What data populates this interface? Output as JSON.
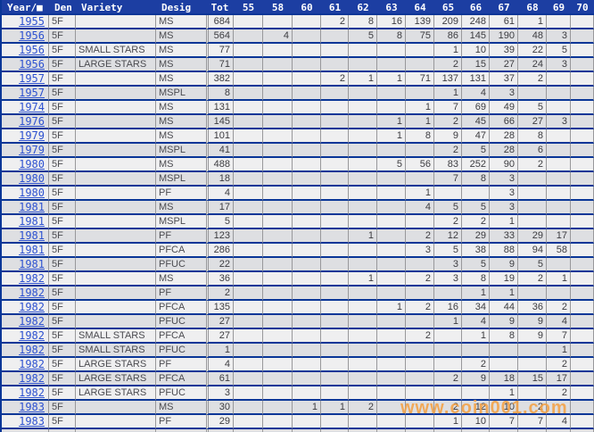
{
  "table": {
    "columns": [
      "Year/■",
      "Den",
      "Variety",
      "Desig",
      "Tot",
      "55",
      "58",
      "60",
      "61",
      "62",
      "63",
      "64",
      "65",
      "66",
      "67",
      "68",
      "69",
      "70"
    ],
    "column_keys": [
      "year",
      "den",
      "variety",
      "desig",
      "tot",
      "g55",
      "g58",
      "g60",
      "g61",
      "g62",
      "g63",
      "g64",
      "g65",
      "g66",
      "g67",
      "g68",
      "g69",
      "g70"
    ],
    "rows": [
      [
        "1955",
        "5F",
        "",
        "MS",
        "684",
        "",
        "",
        "",
        "2",
        "8",
        "16",
        "139",
        "209",
        "248",
        "61",
        "1",
        "",
        ""
      ],
      [
        "1956",
        "5F",
        "",
        "MS",
        "564",
        "",
        "4",
        "",
        "",
        "5",
        "8",
        "75",
        "86",
        "145",
        "190",
        "48",
        "3",
        ""
      ],
      [
        "1956",
        "5F",
        "SMALL STARS",
        "MS",
        "77",
        "",
        "",
        "",
        "",
        "",
        "",
        "",
        "1",
        "10",
        "39",
        "22",
        "5",
        ""
      ],
      [
        "1956",
        "5F",
        "LARGE STARS",
        "MS",
        "71",
        "",
        "",
        "",
        "",
        "",
        "",
        "",
        "2",
        "15",
        "27",
        "24",
        "3",
        ""
      ],
      [
        "1957",
        "5F",
        "",
        "MS",
        "382",
        "",
        "",
        "",
        "2",
        "1",
        "1",
        "71",
        "137",
        "131",
        "37",
        "2",
        "",
        ""
      ],
      [
        "1957",
        "5F",
        "",
        "MSPL",
        "8",
        "",
        "",
        "",
        "",
        "",
        "",
        "",
        "1",
        "4",
        "3",
        "",
        "",
        ""
      ],
      [
        "1974",
        "5F",
        "",
        "MS",
        "131",
        "",
        "",
        "",
        "",
        "",
        "",
        "1",
        "7",
        "69",
        "49",
        "5",
        "",
        ""
      ],
      [
        "1976",
        "5F",
        "",
        "MS",
        "145",
        "",
        "",
        "",
        "",
        "",
        "1",
        "1",
        "2",
        "45",
        "66",
        "27",
        "3",
        ""
      ],
      [
        "1979",
        "5F",
        "",
        "MS",
        "101",
        "",
        "",
        "",
        "",
        "",
        "1",
        "8",
        "9",
        "47",
        "28",
        "8",
        "",
        ""
      ],
      [
        "1979",
        "5F",
        "",
        "MSPL",
        "41",
        "",
        "",
        "",
        "",
        "",
        "",
        "",
        "2",
        "5",
        "28",
        "6",
        "",
        ""
      ],
      [
        "1980",
        "5F",
        "",
        "MS",
        "488",
        "",
        "",
        "",
        "",
        "",
        "5",
        "56",
        "83",
        "252",
        "90",
        "2",
        "",
        ""
      ],
      [
        "1980",
        "5F",
        "",
        "MSPL",
        "18",
        "",
        "",
        "",
        "",
        "",
        "",
        "",
        "7",
        "8",
        "3",
        "",
        "",
        ""
      ],
      [
        "1980",
        "5F",
        "",
        "PF",
        "4",
        "",
        "",
        "",
        "",
        "",
        "",
        "1",
        "",
        "",
        "3",
        "",
        "",
        ""
      ],
      [
        "1981",
        "5F",
        "",
        "MS",
        "17",
        "",
        "",
        "",
        "",
        "",
        "",
        "4",
        "5",
        "5",
        "3",
        "",
        "",
        ""
      ],
      [
        "1981",
        "5F",
        "",
        "MSPL",
        "5",
        "",
        "",
        "",
        "",
        "",
        "",
        "",
        "2",
        "2",
        "1",
        "",
        "",
        ""
      ],
      [
        "1981",
        "5F",
        "",
        "PF",
        "123",
        "",
        "",
        "",
        "",
        "1",
        "",
        "2",
        "12",
        "29",
        "33",
        "29",
        "17",
        ""
      ],
      [
        "1981",
        "5F",
        "",
        "PFCA",
        "286",
        "",
        "",
        "",
        "",
        "",
        "",
        "3",
        "5",
        "38",
        "88",
        "94",
        "58",
        ""
      ],
      [
        "1981",
        "5F",
        "",
        "PFUC",
        "22",
        "",
        "",
        "",
        "",
        "",
        "",
        "",
        "3",
        "5",
        "9",
        "5",
        "",
        ""
      ],
      [
        "1982",
        "5F",
        "",
        "MS",
        "36",
        "",
        "",
        "",
        "",
        "1",
        "",
        "2",
        "3",
        "8",
        "19",
        "2",
        "1",
        ""
      ],
      [
        "1982",
        "5F",
        "",
        "PF",
        "2",
        "",
        "",
        "",
        "",
        "",
        "",
        "",
        "",
        "1",
        "1",
        "",
        "",
        ""
      ],
      [
        "1982",
        "5F",
        "",
        "PFCA",
        "135",
        "",
        "",
        "",
        "",
        "",
        "1",
        "2",
        "16",
        "34",
        "44",
        "36",
        "2",
        ""
      ],
      [
        "1982",
        "5F",
        "",
        "PFUC",
        "27",
        "",
        "",
        "",
        "",
        "",
        "",
        "",
        "1",
        "4",
        "9",
        "9",
        "4",
        ""
      ],
      [
        "1982",
        "5F",
        "SMALL STARS",
        "PFCA",
        "27",
        "",
        "",
        "",
        "",
        "",
        "",
        "2",
        "",
        "1",
        "8",
        "9",
        "7",
        ""
      ],
      [
        "1982",
        "5F",
        "SMALL STARS",
        "PFUC",
        "1",
        "",
        "",
        "",
        "",
        "",
        "",
        "",
        "",
        "",
        "",
        "",
        "1",
        ""
      ],
      [
        "1982",
        "5F",
        "LARGE STARS",
        "PF",
        "4",
        "",
        "",
        "",
        "",
        "",
        "",
        "",
        "",
        "2",
        "",
        "",
        "2",
        ""
      ],
      [
        "1982",
        "5F",
        "LARGE STARS",
        "PFCA",
        "61",
        "",
        "",
        "",
        "",
        "",
        "",
        "",
        "2",
        "9",
        "18",
        "15",
        "17",
        ""
      ],
      [
        "1982",
        "5F",
        "LARGE STARS",
        "PFUC",
        "3",
        "",
        "",
        "",
        "",
        "",
        "",
        "",
        "",
        "",
        "1",
        "",
        "2",
        ""
      ],
      [
        "1983",
        "5F",
        "",
        "MS",
        "30",
        "",
        "",
        "1",
        "1",
        "2",
        "",
        "",
        "2",
        "12",
        "10",
        "2",
        "",
        ""
      ],
      [
        "1983",
        "5F",
        "",
        "PF",
        "29",
        "",
        "",
        "",
        "",
        "",
        "",
        "",
        "1",
        "10",
        "7",
        "7",
        "4",
        ""
      ]
    ]
  },
  "watermark": {
    "text": "www.coin001.com",
    "color": "#F5A041"
  },
  "colors": {
    "header_bg": "#1C3EA2",
    "row_separator": "#0A3697",
    "column_separator": "#98989B",
    "row_light": "#EFEFF0",
    "row_dark": "#DEDFE2",
    "year_link": "#2E52D0",
    "body_text": "#3C3C40"
  }
}
